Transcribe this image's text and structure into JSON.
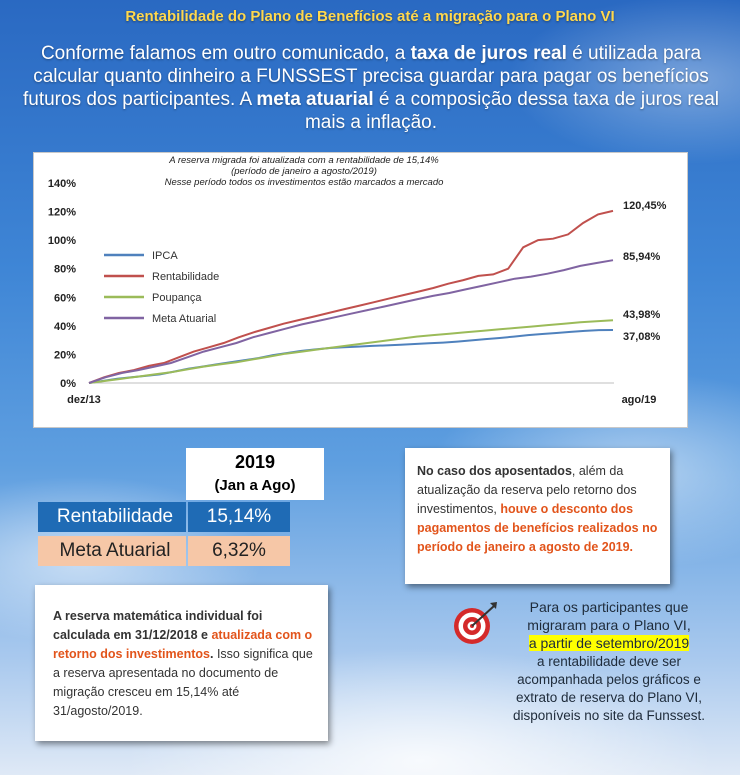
{
  "title": "Rentabilidade do Plano de Benefícios até a migração para o Plano VI",
  "intro": {
    "part1": "Conforme falamos em outro comunicado, a ",
    "bold1": "taxa de juros real",
    "part2": " é utilizada para calcular quanto dinheiro a FUNSSEST precisa guardar para pagar os benefícios futuros dos participantes. A ",
    "bold2": "meta atuarial",
    "part3": " é a composição dessa taxa de juros real mais a inflação."
  },
  "chart_data": {
    "type": "line",
    "annotation": [
      "A reserva migrada foi atualizada com a rentabilidade de 15,14%",
      "(período de janeiro a agosto/2019)",
      "Nesse período todos os investimentos estão marcados a mercado"
    ],
    "x_labels": [
      "dez/13",
      "ago/19"
    ],
    "y_ticks": [
      "0%",
      "20%",
      "40%",
      "60%",
      "80%",
      "100%",
      "120%",
      "140%"
    ],
    "ylim": [
      0,
      140
    ],
    "legend_position": "left",
    "series": [
      {
        "name": "IPCA",
        "color": "#4f81bd",
        "end_label": "37,08%",
        "values": [
          0,
          1.5,
          3,
          4,
          5,
          6,
          8,
          10,
          11.5,
          13,
          14.5,
          16,
          17.5,
          19.5,
          21,
          22.5,
          23.5,
          24.5,
          25,
          25.5,
          26,
          26.3,
          26.8,
          27.3,
          27.8,
          28.3,
          29,
          29.8,
          30.7,
          31.5,
          32.5,
          33.5,
          34.3,
          35,
          35.8,
          36.5,
          37,
          37.08
        ]
      },
      {
        "name": "Rentabilidade",
        "color": "#c0504d",
        "end_label": "120,45%",
        "values": [
          0,
          4,
          7,
          9,
          12,
          14,
          18,
          22,
          25,
          28,
          32,
          35.5,
          38.5,
          41.5,
          44,
          46.5,
          49,
          51.5,
          54,
          56.5,
          59,
          61.5,
          64,
          66.5,
          69.5,
          72,
          75,
          76,
          80,
          95,
          100,
          101,
          104,
          112,
          118,
          120.45
        ]
      },
      {
        "name": "Poupança",
        "color": "#9bbb59",
        "end_label": "43,98%",
        "values": [
          0,
          1.5,
          3,
          4.5,
          6,
          7.5,
          9.5,
          11.5,
          13,
          14.5,
          16.5,
          18.5,
          20.5,
          22,
          23.5,
          25,
          26.5,
          28,
          29.5,
          31,
          32.5,
          33.5,
          34.5,
          35.5,
          36.5,
          37.5,
          38.5,
          39.5,
          40.5,
          41.5,
          42.5,
          43.2,
          43.98
        ]
      },
      {
        "name": "Meta Atuarial",
        "color": "#8064a2",
        "end_label": "85,94%",
        "values": [
          0,
          4,
          7,
          9,
          11.5,
          14,
          18,
          22,
          25,
          28,
          32,
          35,
          38,
          41,
          43.5,
          46,
          48.5,
          51,
          53.5,
          56,
          58.5,
          61,
          63,
          65.5,
          68,
          70.5,
          73,
          74.5,
          76.5,
          79,
          82,
          84,
          85.94
        ]
      }
    ]
  },
  "table": {
    "year": "2019",
    "range": "(Jan a Ago)",
    "rows": [
      {
        "label": "Rentabilidade",
        "value": "15,14%"
      },
      {
        "label": "Meta Atuarial",
        "value": "6,32%"
      }
    ]
  },
  "note_right": {
    "b1": "No caso dos aposentados",
    "t1": ", além da atualização da reserva pelo retorno dos investimentos, ",
    "o1": "houve o desconto dos pagamentos de benefícios realizados no período de janeiro a agosto de 2019."
  },
  "note_left": {
    "b1": "A reserva matemática individual foi calculada em 31/12/2018 e ",
    "o1": "atualizada com o retorno dos investimentos",
    "b2": ".",
    "t1": " Isso significa que a reserva apresentada no documento de migração cresceu em 15,14% até 31/agosto/2019."
  },
  "side": {
    "line1": "Para os participantes que migraram para o Plano VI,",
    "highlight": "a partir de setembro/2019",
    "line2": " a rentabilidade deve ser acompanhada pelos gráficos e extrato de reserva do Plano VI, disponíveis no site da Funssest."
  },
  "icons": {
    "target": "target-arrow-icon"
  }
}
